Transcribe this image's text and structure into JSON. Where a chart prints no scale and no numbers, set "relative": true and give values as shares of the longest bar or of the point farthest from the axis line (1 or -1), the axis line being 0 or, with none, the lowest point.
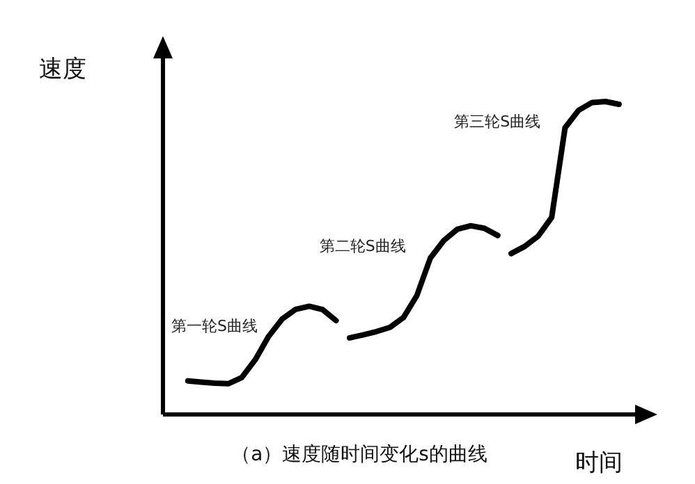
{
  "chart_data": {
    "type": "line",
    "relative": true,
    "ylabel": "速度",
    "xlabel": "时间",
    "annotations": [
      "（a）速度随时间变化s的曲线"
    ],
    "color": "#000000",
    "categories": [
      null,
      null,
      null,
      null,
      null,
      null,
      null,
      null,
      null,
      null,
      null,
      null,
      null,
      null,
      null,
      null,
      null,
      null,
      null,
      null,
      null,
      null,
      null,
      null,
      null,
      null,
      null,
      null,
      null,
      null,
      null,
      null,
      null
    ],
    "series": [
      {
        "name": "第一轮S曲线",
        "color": "#000000",
        "values": [
          0.107,
          0.103,
          0.1,
          0.098,
          0.118,
          0.175,
          0.25,
          0.305,
          0.336,
          0.346,
          0.335,
          0.3,
          null,
          null,
          null,
          null,
          null,
          null,
          null,
          null,
          null,
          null,
          null,
          null,
          null,
          null,
          null,
          null,
          null,
          null,
          null,
          null,
          null
        ]
      },
      {
        "name": "第二轮S曲线",
        "color": "#000000",
        "values": [
          null,
          null,
          null,
          null,
          null,
          null,
          null,
          null,
          null,
          null,
          null,
          null,
          0.245,
          0.254,
          0.265,
          0.278,
          0.31,
          0.38,
          0.5,
          0.556,
          0.592,
          0.603,
          0.595,
          0.572,
          null,
          null,
          null,
          null,
          null,
          null,
          null,
          null,
          null
        ]
      },
      {
        "name": "第三轮S曲线",
        "color": "#000000",
        "values": [
          null,
          null,
          null,
          null,
          null,
          null,
          null,
          null,
          null,
          null,
          null,
          null,
          null,
          null,
          null,
          null,
          null,
          null,
          null,
          null,
          null,
          null,
          null,
          null,
          0.514,
          0.537,
          0.57,
          0.63,
          0.916,
          0.972,
          0.997,
          1.0,
          0.991
        ]
      }
    ]
  }
}
